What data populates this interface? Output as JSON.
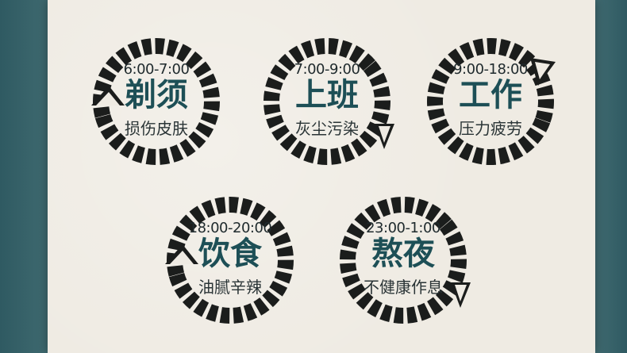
{
  "items": [
    {
      "time": "6:00-7:00",
      "title": "剃须",
      "subtitle": "损伤皮肤",
      "arrow": "counterclockwise-left"
    },
    {
      "time": "7:00-9:00",
      "title": "上班",
      "subtitle": "灰尘污染",
      "arrow": "clockwise-right"
    },
    {
      "time": "9:00-18:00",
      "title": "工作",
      "subtitle": "压力疲劳",
      "arrow": "clockwise-top-right"
    },
    {
      "time": "18:00-20:00",
      "title": "饮食",
      "subtitle": "油腻辛辣",
      "arrow": "counterclockwise-left"
    },
    {
      "time": "23:00-1:00",
      "title": "熬夜",
      "subtitle": "不健康作息",
      "arrow": "clockwise-right"
    }
  ],
  "colors": {
    "ring": "#1b1d1c",
    "title": "#1d4f56",
    "background": "#3f6a70",
    "paper": "#efebe3"
  }
}
